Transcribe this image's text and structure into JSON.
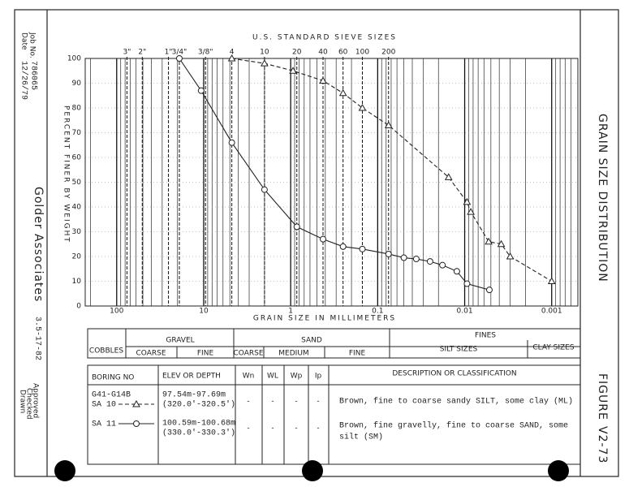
{
  "header": {
    "date_label": "Date",
    "date": "12/26/79",
    "job_label": "Job No.",
    "job_no": "786065",
    "company": "Golder Associates",
    "company_date": "3.5-17-82",
    "drawn": "Drawn",
    "checked": "Checked",
    "approved": "Approved",
    "title": "GRAIN SIZE DISTRIBUTION",
    "figure_label": "FIGURE",
    "figure_no": "V2-73"
  },
  "chart_data": {
    "type": "line",
    "x_title": "GRAIN SIZE IN MILLIMETERS",
    "y_title": "PERCENT FINER BY WEIGHT",
    "x2_title": "U.S. STANDARD SIEVE SIZES",
    "xscale": "log",
    "xlim": [
      230,
      0.0005
    ],
    "ylim": [
      0,
      100
    ],
    "xticks": [
      100,
      10,
      1,
      0.1,
      0.01,
      0.001
    ],
    "yticks": [
      0,
      10,
      20,
      30,
      40,
      50,
      60,
      70,
      80,
      90,
      100
    ],
    "x2ticks": [
      {
        "value": 76.2,
        "label": "3\""
      },
      {
        "value": 50.8,
        "label": "2\""
      },
      {
        "value": 25.4,
        "label": "1\""
      },
      {
        "value": 19.05,
        "label": "3/4\""
      },
      {
        "value": 9.525,
        "label": "3/8\""
      },
      {
        "value": 4.75,
        "label": "4"
      },
      {
        "value": 2.0,
        "label": "10"
      },
      {
        "value": 0.85,
        "label": "20"
      },
      {
        "value": 0.425,
        "label": "40"
      },
      {
        "value": 0.25,
        "label": "60"
      },
      {
        "value": 0.15,
        "label": "100"
      },
      {
        "value": 0.075,
        "label": "200"
      }
    ],
    "grid": true,
    "series": [
      {
        "name": "SA 10",
        "color": "#222222",
        "linestyle": "dashed",
        "marker": "triangle",
        "x": [
          4.75,
          2.0,
          0.94,
          0.425,
          0.25,
          0.15,
          0.075,
          0.0153,
          0.0094,
          0.0085,
          0.0053,
          0.0038,
          0.003,
          0.001
        ],
        "values": [
          100,
          98,
          95,
          91,
          86,
          80,
          73,
          52,
          42,
          38,
          26,
          25,
          20,
          10
        ]
      },
      {
        "name": "SA 11",
        "color": "#222222",
        "linestyle": "solid",
        "marker": "circle",
        "x": [
          19.05,
          10.7,
          4.75,
          2.0,
          0.85,
          0.425,
          0.25,
          0.15,
          0.075,
          0.05,
          0.036,
          0.025,
          0.018,
          0.0123,
          0.0094,
          0.0052
        ],
        "values": [
          100,
          87,
          66,
          47,
          32,
          27,
          24,
          23,
          21,
          19.5,
          19,
          18,
          16.5,
          14,
          9,
          6.5
        ]
      }
    ]
  },
  "classification": {
    "cobbles": "COBBLES",
    "gravel": "GRAVEL",
    "gravel_parts": [
      "COARSE",
      "FINE"
    ],
    "sand": "SAND",
    "sand_parts": [
      "COARSE",
      "MEDIUM",
      "FINE"
    ],
    "fines": "FINES",
    "fines_parts": [
      "SILT SIZES",
      "CLAY SIZES"
    ]
  },
  "table": {
    "headers": [
      "BORING NO",
      "ELEV OR DEPTH",
      "Wn",
      "WL",
      "Wp",
      "Ip",
      "DESCRIPTION OR CLASSIFICATION"
    ],
    "rows": [
      {
        "boring": "G41-G14B",
        "elev": [
          "97.54m-97.69m",
          "(320.0'-320.5')"
        ],
        "wn": "-",
        "wl": "-",
        "wp": "-",
        "ip": "-",
        "description": [
          "Brown, fine to coarse sandy SILT, some clay (ML)"
        ]
      },
      {
        "elev": [
          "100.59m-100.68m",
          "(330.0'-330.3')"
        ],
        "wn": "-",
        "wl": "-",
        "wp": "-",
        "ip": "-",
        "description": [
          "Brown, fine gravelly, fine to coarse SAND, some",
          "silt (SM)"
        ]
      }
    ]
  }
}
